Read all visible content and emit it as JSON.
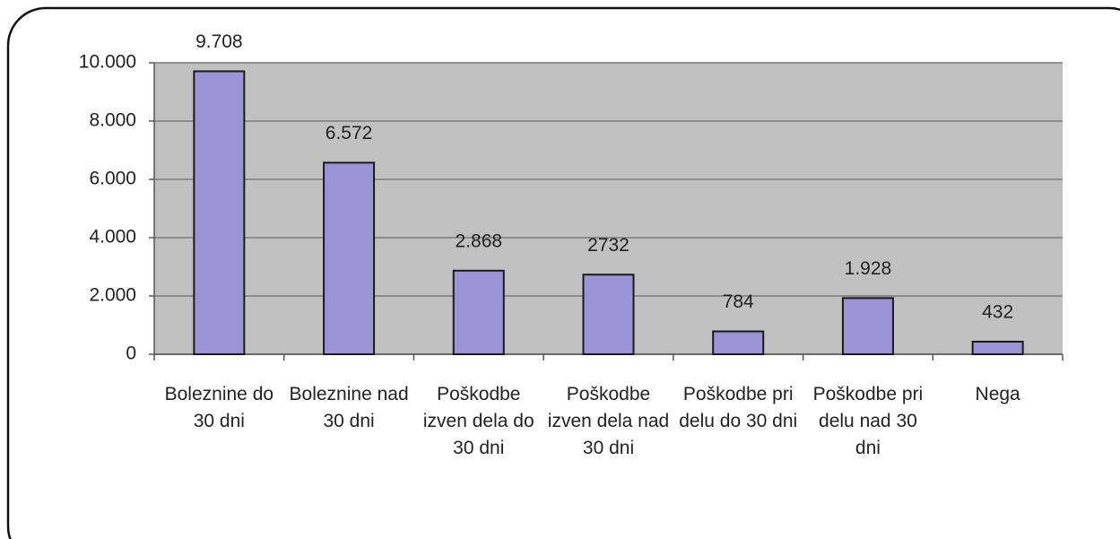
{
  "chart_data": {
    "type": "bar",
    "categories": [
      "Boleznine do 30 dni",
      "Boleznine nad 30 dni",
      "Poškodbe izven dela do 30 dni",
      "Poškodbe izven dela nad 30 dni",
      "Poškodbe pri delu do 30 dni",
      "Poškodbe pri delu nad 30 dni",
      "Nega"
    ],
    "values": [
      9708,
      6572,
      2868,
      2732,
      784,
      1928,
      432
    ],
    "value_labels": [
      "9.708",
      "6.572",
      "2.868",
      "2732",
      "784",
      "1.928",
      "432"
    ],
    "color": "#9b93d3",
    "ylim": [
      0,
      10000
    ],
    "yticks": [
      0,
      {
        "value": 2000,
        "label": "2.000"
      },
      {
        "value": 4000,
        "label": "4.000"
      },
      {
        "value": 6000,
        "label": "6.000"
      },
      {
        "value": 8000,
        "label": "8.000"
      },
      {
        "value": 10000,
        "label": "10.000"
      }
    ],
    "grid": true
  }
}
